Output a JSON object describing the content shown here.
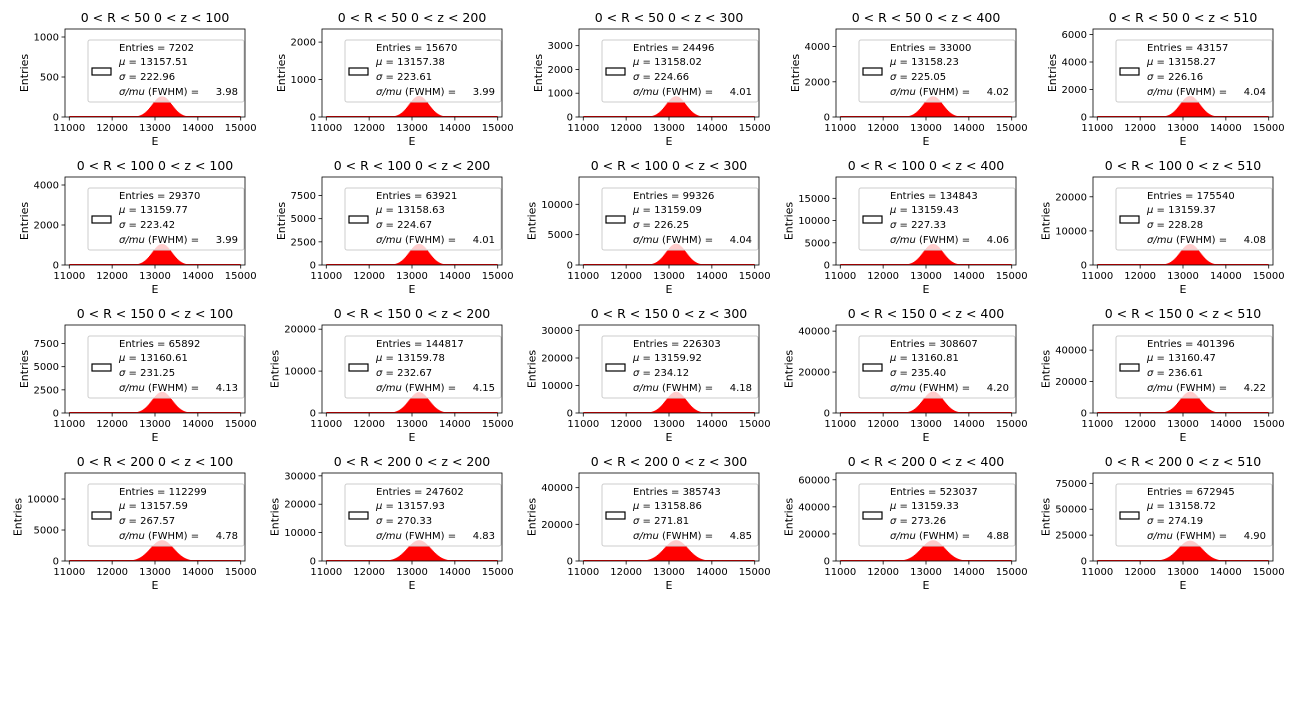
{
  "figure": {
    "background": "#ffffff",
    "series_color": "#ff0000",
    "legend_border": "#cccccc"
  },
  "chart_data": [
    {
      "type": "bar",
      "title": "0 < R < 50 0 < z < 100",
      "xlabel": "E",
      "ylabel": "Entries",
      "xlim": [
        10900,
        15100
      ],
      "ylim": [
        0,
        1100
      ],
      "xticks": [
        11000,
        12000,
        13000,
        14000,
        15000
      ],
      "yticks": [
        0,
        500,
        1000
      ],
      "entries": 7202,
      "mu": 13157.51,
      "sigma": 222.96,
      "fwhm_ratio": 3.98,
      "legend": {
        "entries": "Entries = 7202",
        "mu": "= 13157.51",
        "sigma": "=  222.96",
        "fwhm": "3.98"
      }
    },
    {
      "type": "bar",
      "title": "0 < R < 50 0 < z < 200",
      "xlabel": "E",
      "ylabel": "Entries",
      "xlim": [
        10900,
        15100
      ],
      "ylim": [
        0,
        2350
      ],
      "xticks": [
        11000,
        12000,
        13000,
        14000,
        15000
      ],
      "yticks": [
        0,
        1000,
        2000
      ],
      "entries": 15670,
      "mu": 13157.38,
      "sigma": 223.61,
      "fwhm_ratio": 3.99,
      "legend": {
        "entries": "Entries = 15670",
        "mu": "= 13157.38",
        "sigma": "=  223.61",
        "fwhm": "3.99"
      }
    },
    {
      "type": "bar",
      "title": "0 < R < 50 0 < z < 300",
      "xlabel": "E",
      "ylabel": "Entries",
      "xlim": [
        10900,
        15100
      ],
      "ylim": [
        0,
        3700
      ],
      "xticks": [
        11000,
        12000,
        13000,
        14000,
        15000
      ],
      "yticks": [
        0,
        1000,
        2000,
        3000
      ],
      "entries": 24496,
      "mu": 13158.02,
      "sigma": 224.66,
      "fwhm_ratio": 4.01,
      "legend": {
        "entries": "Entries = 24496",
        "mu": "= 13158.02",
        "sigma": "=  224.66",
        "fwhm": "4.01"
      }
    },
    {
      "type": "bar",
      "title": "0 < R < 50 0 < z < 400",
      "xlabel": "E",
      "ylabel": "Entries",
      "xlim": [
        10900,
        15100
      ],
      "ylim": [
        0,
        5000
      ],
      "xticks": [
        11000,
        12000,
        13000,
        14000,
        15000
      ],
      "yticks": [
        0,
        2000,
        4000
      ],
      "entries": 33000,
      "mu": 13158.23,
      "sigma": 225.05,
      "fwhm_ratio": 4.02,
      "legend": {
        "entries": "Entries = 33000",
        "mu": "= 13158.23",
        "sigma": "=  225.05",
        "fwhm": "4.02"
      }
    },
    {
      "type": "bar",
      "title": "0 < R < 50 0 < z < 510",
      "xlabel": "E",
      "ylabel": "Entries",
      "xlim": [
        10900,
        15100
      ],
      "ylim": [
        0,
        6400
      ],
      "xticks": [
        11000,
        12000,
        13000,
        14000,
        15000
      ],
      "yticks": [
        0,
        2000,
        4000,
        6000
      ],
      "entries": 43157,
      "mu": 13158.27,
      "sigma": 226.16,
      "fwhm_ratio": 4.04,
      "legend": {
        "entries": "Entries = 43157",
        "mu": "= 13158.27",
        "sigma": "=  226.16",
        "fwhm": "4.04"
      }
    },
    {
      "type": "bar",
      "title": "0 < R < 100 0 < z < 100",
      "xlabel": "E",
      "ylabel": "Entries",
      "xlim": [
        10900,
        15100
      ],
      "ylim": [
        0,
        4400
      ],
      "xticks": [
        11000,
        12000,
        13000,
        14000,
        15000
      ],
      "yticks": [
        0,
        2000,
        4000
      ],
      "entries": 29370,
      "mu": 13159.77,
      "sigma": 223.42,
      "fwhm_ratio": 3.99,
      "legend": {
        "entries": "Entries = 29370",
        "mu": "= 13159.77",
        "sigma": "=  223.42",
        "fwhm": "3.99"
      }
    },
    {
      "type": "bar",
      "title": "0 < R < 100 0 < z < 200",
      "xlabel": "E",
      "ylabel": "Entries",
      "xlim": [
        10900,
        15100
      ],
      "ylim": [
        0,
        9500
      ],
      "xticks": [
        11000,
        12000,
        13000,
        14000,
        15000
      ],
      "yticks": [
        0,
        2500,
        5000,
        7500
      ],
      "entries": 63921,
      "mu": 13158.63,
      "sigma": 224.67,
      "fwhm_ratio": 4.01,
      "legend": {
        "entries": "Entries = 63921",
        "mu": "= 13158.63",
        "sigma": "=  224.67",
        "fwhm": "4.01"
      }
    },
    {
      "type": "bar",
      "title": "0 < R < 100 0 < z < 300",
      "xlabel": "E",
      "ylabel": "Entries",
      "xlim": [
        10900,
        15100
      ],
      "ylim": [
        0,
        14500
      ],
      "xticks": [
        11000,
        12000,
        13000,
        14000,
        15000
      ],
      "yticks": [
        0,
        5000,
        10000
      ],
      "entries": 99326,
      "mu": 13159.09,
      "sigma": 226.25,
      "fwhm_ratio": 4.04,
      "legend": {
        "entries": "Entries = 99326",
        "mu": "= 13159.09",
        "sigma": "=  226.25",
        "fwhm": "4.04"
      }
    },
    {
      "type": "bar",
      "title": "0 < R < 100 0 < z < 400",
      "xlabel": "E",
      "ylabel": "Entries",
      "xlim": [
        10900,
        15100
      ],
      "ylim": [
        0,
        19800
      ],
      "xticks": [
        11000,
        12000,
        13000,
        14000,
        15000
      ],
      "yticks": [
        0,
        5000,
        10000,
        15000
      ],
      "entries": 134843,
      "mu": 13159.43,
      "sigma": 227.33,
      "fwhm_ratio": 4.06,
      "legend": {
        "entries": "Entries = 134843",
        "mu": "= 13159.43",
        "sigma": "=  227.33",
        "fwhm": "4.06"
      }
    },
    {
      "type": "bar",
      "title": "0 < R < 100 0 < z < 510",
      "xlabel": "E",
      "ylabel": "Entries",
      "xlim": [
        10900,
        15100
      ],
      "ylim": [
        0,
        25800
      ],
      "xticks": [
        11000,
        12000,
        13000,
        14000,
        15000
      ],
      "yticks": [
        0,
        10000,
        20000
      ],
      "entries": 175540,
      "mu": 13159.37,
      "sigma": 228.28,
      "fwhm_ratio": 4.08,
      "legend": {
        "entries": "Entries = 175540",
        "mu": "= 13159.37",
        "sigma": "=  228.28",
        "fwhm": "4.08"
      }
    },
    {
      "type": "bar",
      "title": "0 < R < 150 0 < z < 100",
      "xlabel": "E",
      "ylabel": "Entries",
      "xlim": [
        10900,
        15100
      ],
      "ylim": [
        0,
        9500
      ],
      "xticks": [
        11000,
        12000,
        13000,
        14000,
        15000
      ],
      "yticks": [
        0,
        2500,
        5000,
        7500
      ],
      "entries": 65892,
      "mu": 13160.61,
      "sigma": 231.25,
      "fwhm_ratio": 4.13,
      "legend": {
        "entries": "Entries = 65892",
        "mu": "= 13160.61",
        "sigma": "=  231.25",
        "fwhm": "4.13"
      }
    },
    {
      "type": "bar",
      "title": "0 < R < 150 0 < z < 200",
      "xlabel": "E",
      "ylabel": "Entries",
      "xlim": [
        10900,
        15100
      ],
      "ylim": [
        0,
        21000
      ],
      "xticks": [
        11000,
        12000,
        13000,
        14000,
        15000
      ],
      "yticks": [
        0,
        10000,
        20000
      ],
      "entries": 144817,
      "mu": 13159.78,
      "sigma": 232.67,
      "fwhm_ratio": 4.15,
      "legend": {
        "entries": "Entries = 144817",
        "mu": "= 13159.78",
        "sigma": "=  232.67",
        "fwhm": "4.15"
      }
    },
    {
      "type": "bar",
      "title": "0 < R < 150 0 < z < 300",
      "xlabel": "E",
      "ylabel": "Entries",
      "xlim": [
        10900,
        15100
      ],
      "ylim": [
        0,
        32000
      ],
      "xticks": [
        11000,
        12000,
        13000,
        14000,
        15000
      ],
      "yticks": [
        0,
        10000,
        20000,
        30000
      ],
      "entries": 226303,
      "mu": 13159.92,
      "sigma": 234.12,
      "fwhm_ratio": 4.18,
      "legend": {
        "entries": "Entries = 226303",
        "mu": "= 13159.92",
        "sigma": "=  234.12",
        "fwhm": "4.18"
      }
    },
    {
      "type": "bar",
      "title": "0 < R < 150 0 < z < 400",
      "xlabel": "E",
      "ylabel": "Entries",
      "xlim": [
        10900,
        15100
      ],
      "ylim": [
        0,
        43000
      ],
      "xticks": [
        11000,
        12000,
        13000,
        14000,
        15000
      ],
      "yticks": [
        0,
        20000,
        40000
      ],
      "entries": 308607,
      "mu": 13160.81,
      "sigma": 235.4,
      "fwhm_ratio": 4.2,
      "legend": {
        "entries": "Entries = 308607",
        "mu": "= 13160.81",
        "sigma": "=  235.40",
        "fwhm": "4.20"
      }
    },
    {
      "type": "bar",
      "title": "0 < R < 150 0 < z < 510",
      "xlabel": "E",
      "ylabel": "Entries",
      "xlim": [
        10900,
        15100
      ],
      "ylim": [
        0,
        56000
      ],
      "xticks": [
        11000,
        12000,
        13000,
        14000,
        15000
      ],
      "yticks": [
        0,
        20000,
        40000
      ],
      "entries": 401396,
      "mu": 13160.47,
      "sigma": 236.61,
      "fwhm_ratio": 4.22,
      "legend": {
        "entries": "Entries = 401396",
        "mu": "= 13160.47",
        "sigma": "=  236.61",
        "fwhm": "4.22"
      }
    },
    {
      "type": "bar",
      "title": "0 < R < 200 0 < z < 100",
      "xlabel": "E",
      "ylabel": "Entries",
      "xlim": [
        10900,
        15100
      ],
      "ylim": [
        0,
        14200
      ],
      "xticks": [
        11000,
        12000,
        13000,
        14000,
        15000
      ],
      "yticks": [
        0,
        5000,
        10000
      ],
      "entries": 112299,
      "mu": 13157.59,
      "sigma": 267.57,
      "fwhm_ratio": 4.78,
      "legend": {
        "entries": "Entries = 112299",
        "mu": "= 13157.59",
        "sigma": "=  267.57",
        "fwhm": "4.78"
      }
    },
    {
      "type": "bar",
      "title": "0 < R < 200 0 < z < 200",
      "xlabel": "E",
      "ylabel": "Entries",
      "xlim": [
        10900,
        15100
      ],
      "ylim": [
        0,
        31000
      ],
      "xticks": [
        11000,
        12000,
        13000,
        14000,
        15000
      ],
      "yticks": [
        0,
        10000,
        20000,
        30000
      ],
      "entries": 247602,
      "mu": 13157.93,
      "sigma": 270.33,
      "fwhm_ratio": 4.83,
      "legend": {
        "entries": "Entries = 247602",
        "mu": "= 13157.93",
        "sigma": "=  270.33",
        "fwhm": "4.83"
      }
    },
    {
      "type": "bar",
      "title": "0 < R < 200 0 < z < 300",
      "xlabel": "E",
      "ylabel": "Entries",
      "xlim": [
        10900,
        15100
      ],
      "ylim": [
        0,
        48000
      ],
      "xticks": [
        11000,
        12000,
        13000,
        14000,
        15000
      ],
      "yticks": [
        0,
        20000,
        40000
      ],
      "entries": 385743,
      "mu": 13158.86,
      "sigma": 271.81,
      "fwhm_ratio": 4.85,
      "legend": {
        "entries": "Entries = 385743",
        "mu": "= 13158.86",
        "sigma": "=  271.81",
        "fwhm": "4.85"
      }
    },
    {
      "type": "bar",
      "title": "0 < R < 200 0 < z < 400",
      "xlabel": "E",
      "ylabel": "Entries",
      "xlim": [
        10900,
        15100
      ],
      "ylim": [
        0,
        65000
      ],
      "xticks": [
        11000,
        12000,
        13000,
        14000,
        15000
      ],
      "yticks": [
        0,
        20000,
        40000,
        60000
      ],
      "entries": 523037,
      "mu": 13159.33,
      "sigma": 273.26,
      "fwhm_ratio": 4.88,
      "legend": {
        "entries": "Entries = 523037",
        "mu": "= 13159.33",
        "sigma": "=  273.26",
        "fwhm": "4.88"
      }
    },
    {
      "type": "bar",
      "title": "0 < R < 200 0 < z < 510",
      "xlabel": "E",
      "ylabel": "Entries",
      "xlim": [
        10900,
        15100
      ],
      "ylim": [
        0,
        85000
      ],
      "xticks": [
        11000,
        12000,
        13000,
        14000,
        15000
      ],
      "yticks": [
        0,
        25000,
        50000,
        75000
      ],
      "entries": 672945,
      "mu": 13158.72,
      "sigma": 274.19,
      "fwhm_ratio": 4.9,
      "legend": {
        "entries": "Entries = 672945",
        "mu": "= 13158.72",
        "sigma": "=  274.19",
        "fwhm": "4.90"
      }
    }
  ]
}
